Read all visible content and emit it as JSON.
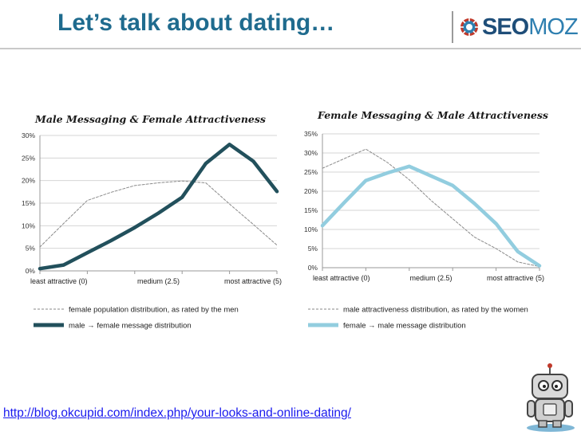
{
  "slide": {
    "title": "Let’s talk about dating…",
    "source_url": "http://blog.okcupid.com/index.php/your-looks-and-online-dating/"
  },
  "logo": {
    "seo": "SEO",
    "moz": "MOZ",
    "icon": "gear-icon"
  },
  "colors": {
    "title": "#1f6b8e",
    "male_series": "#22505c",
    "female_series": "#92cddf",
    "dotted": "#8a8a8a",
    "link": "#1a1aee"
  },
  "chart_data": [
    {
      "type": "line",
      "title": "Male Messaging & Female Attractiveness",
      "x": [
        0,
        0.5,
        1,
        1.5,
        2,
        2.5,
        3,
        3.5,
        4,
        4.5,
        5
      ],
      "x_tick_labels": [
        "least attractive (0)",
        "medium (2.5)",
        "most attractive (5)"
      ],
      "x_tick_positions": [
        0,
        2.5,
        5
      ],
      "ylim": [
        0,
        30
      ],
      "y_ticks": [
        "0%",
        "5%",
        "10%",
        "15%",
        "20%",
        "25%",
        "30%"
      ],
      "y_tick_values": [
        0,
        5,
        10,
        15,
        20,
        25,
        30
      ],
      "grid": true,
      "legend_position": "bottom",
      "series": [
        {
          "name": "female population  distribution, as rated by the men",
          "style": "dotted",
          "values": [
            5.3,
            10.5,
            15.6,
            17.4,
            18.9,
            19.5,
            19.9,
            19.5,
            14.8,
            10.3,
            5.7
          ]
        },
        {
          "name": "male → female message distribution",
          "style": "solid",
          "values": [
            0.5,
            1.3,
            4.0,
            6.7,
            9.6,
            12.8,
            16.3,
            23.8,
            28.0,
            24.3,
            17.6
          ]
        }
      ]
    },
    {
      "type": "line",
      "title": "Female Messaging & Male Attractiveness",
      "x": [
        0,
        0.5,
        1,
        1.5,
        2,
        2.5,
        3,
        3.5,
        4,
        4.5,
        5
      ],
      "x_tick_labels": [
        "least attractive (0)",
        "medium (2.5)",
        "most attractive (5)"
      ],
      "x_tick_positions": [
        0,
        2.5,
        5
      ],
      "ylim": [
        0,
        35
      ],
      "y_ticks": [
        "0%",
        "5%",
        "10%",
        "15%",
        "20%",
        "25%",
        "30%",
        "35%"
      ],
      "y_tick_values": [
        0,
        5,
        10,
        15,
        20,
        25,
        30,
        35
      ],
      "grid": true,
      "legend_position": "bottom",
      "series": [
        {
          "name": "male attractiveness distribution, as rated by the women",
          "style": "dotted",
          "values": [
            26.0,
            28.5,
            31.0,
            27.5,
            23.0,
            17.6,
            12.8,
            8.0,
            5.0,
            1.5,
            0.3
          ]
        },
        {
          "name": "female → male message distribution",
          "style": "solid",
          "values": [
            11.0,
            17.0,
            22.8,
            24.8,
            26.5,
            24.0,
            21.5,
            16.8,
            11.5,
            4.2,
            0.5
          ]
        }
      ]
    }
  ]
}
